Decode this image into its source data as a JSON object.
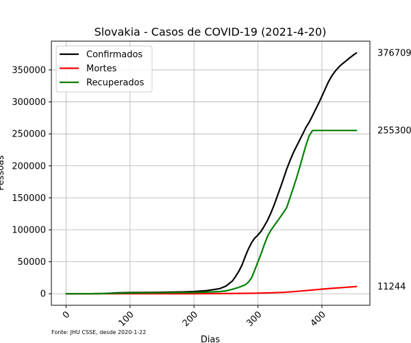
{
  "chart_data": {
    "type": "line",
    "title": "Slovakia - Casos de COVID-19 (2021-4-20)",
    "xlabel": "Dias",
    "ylabel": "Pessoas",
    "xlim": [
      -23,
      475
    ],
    "ylim": [
      -18000,
      395000
    ],
    "x_ticks": [
      0,
      100,
      200,
      300,
      400
    ],
    "y_ticks": [
      0,
      50000,
      100000,
      150000,
      200000,
      250000,
      300000,
      350000
    ],
    "grid": true,
    "legend_position": "top-left",
    "source_note": "Fonte: JHU CSSE, desde 2020-1-22",
    "series": [
      {
        "name": "Confirmados",
        "color": "#000000",
        "end_label": "376709",
        "x": [
          0,
          40,
          60,
          80,
          100,
          140,
          180,
          200,
          220,
          240,
          250,
          260,
          265,
          270,
          275,
          280,
          285,
          290,
          295,
          300,
          305,
          310,
          315,
          320,
          325,
          330,
          335,
          340,
          345,
          350,
          355,
          360,
          365,
          370,
          375,
          380,
          385,
          390,
          395,
          400,
          405,
          410,
          415,
          420,
          425,
          430,
          435,
          440,
          445,
          450,
          454
        ],
        "y": [
          0,
          100,
          500,
          1500,
          1800,
          2200,
          2800,
          3500,
          5000,
          8000,
          12000,
          20000,
          27000,
          35000,
          45000,
          58000,
          70000,
          80000,
          87000,
          92000,
          98000,
          106000,
          115000,
          126000,
          138000,
          152000,
          166000,
          180000,
          195000,
          208000,
          220000,
          230000,
          240000,
          250000,
          260000,
          268000,
          278000,
          288000,
          298000,
          309000,
          320000,
          331000,
          340000,
          347000,
          353000,
          358000,
          362000,
          366000,
          370000,
          374000,
          376709
        ]
      },
      {
        "name": "Mortes",
        "color": "#ff0000",
        "end_label": "11244",
        "x": [
          0,
          100,
          200,
          250,
          280,
          300,
          320,
          340,
          360,
          380,
          400,
          420,
          440,
          454
        ],
        "y": [
          0,
          30,
          60,
          300,
          700,
          1000,
          1500,
          2200,
          3700,
          5400,
          7200,
          8800,
          10200,
          11244
        ]
      },
      {
        "name": "Recuperados",
        "color": "#008000",
        "end_label": "255300",
        "x": [
          0,
          40,
          60,
          80,
          100,
          140,
          180,
          200,
          220,
          240,
          250,
          260,
          270,
          280,
          285,
          290,
          295,
          300,
          305,
          310,
          315,
          320,
          330,
          340,
          345,
          350,
          355,
          360,
          365,
          370,
          375,
          380,
          385,
          387,
          390,
          400,
          420,
          440,
          454
        ],
        "y": [
          0,
          80,
          300,
          900,
          1200,
          1500,
          1800,
          2000,
          2500,
          3500,
          4500,
          7000,
          10000,
          14000,
          18000,
          25000,
          37000,
          50000,
          63000,
          77000,
          90000,
          99000,
          113000,
          127000,
          135000,
          150000,
          165000,
          180000,
          197000,
          215000,
          232000,
          247000,
          255000,
          255300,
          255300,
          255300,
          255300,
          255300,
          255300
        ]
      }
    ]
  }
}
